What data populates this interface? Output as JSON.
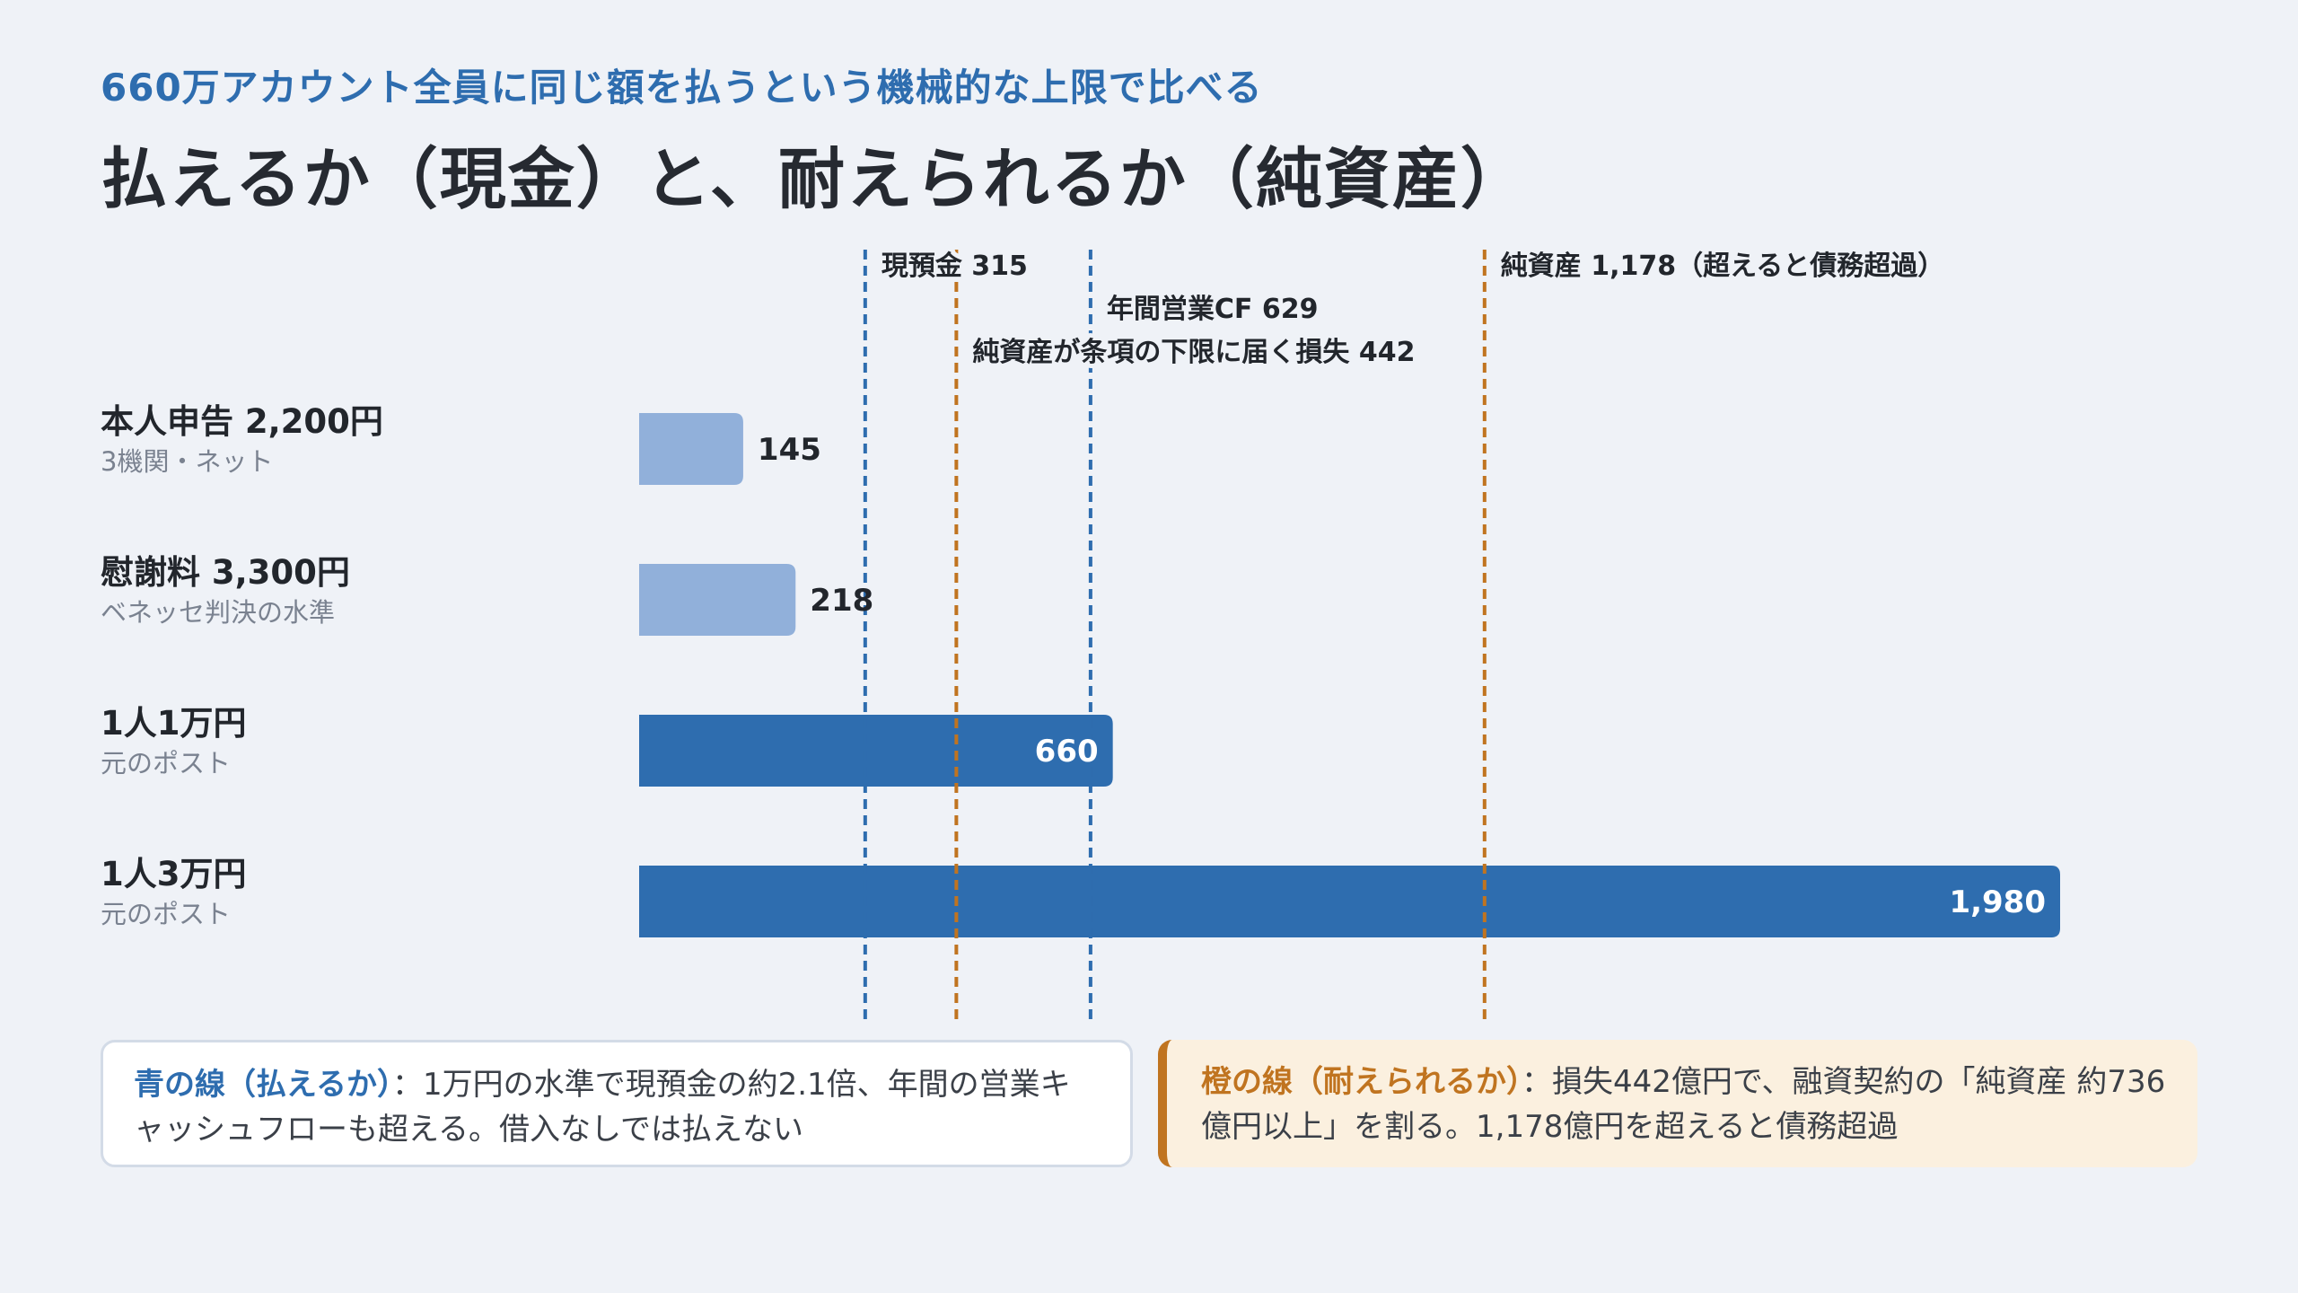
{
  "header": {
    "subtitle": "660万アカウント全員に同じ額を払うという機械的な上限で比べる",
    "title": "払えるか（現金）と、耐えられるか（純資産）"
  },
  "chart_data": {
    "type": "bar",
    "orientation": "horizontal",
    "categories": [
      {
        "label": "本人申告 2,200円",
        "sublabel": "3機関・ネット"
      },
      {
        "label": "慰謝料 3,300円",
        "sublabel": "ベネッセ判決の水準"
      },
      {
        "label": "1人1万円",
        "sublabel": "元のポスト"
      },
      {
        "label": "1人3万円",
        "sublabel": "元のポスト"
      }
    ],
    "values": [
      145,
      218,
      660,
      1980
    ],
    "value_labels": [
      "145",
      "218",
      "660",
      "1,980"
    ],
    "bar_colors": [
      "#91b0da",
      "#91b0da",
      "#2e6daf",
      "#2e6daf"
    ],
    "xlim": [
      0,
      1980
    ],
    "reference_lines": [
      {
        "value": 315,
        "label": "現預金 315",
        "color": "#2e6daf"
      },
      {
        "value": 442,
        "label": "純資産が条項の下限に届く損失 442",
        "color": "#c07420"
      },
      {
        "value": 629,
        "label": "年間営業CF 629",
        "color": "#2e6daf"
      },
      {
        "value": 1178,
        "label": "純資産 1,178（超えると債務超過）",
        "color": "#c07420"
      }
    ],
    "grid": false
  },
  "notes": {
    "blue": {
      "heading": "青の線（払えるか）",
      "body": "：1万円の水準で現預金の約2.1倍、年間の営業キャッシュフローも超える。借入なしでは払えない"
    },
    "orange": {
      "heading": "橙の線（耐えられるか）",
      "body": "：損失442億円で、融資契約の「純資産 約736億円以上」を割る。1,178億円を超えると債務超過"
    }
  }
}
